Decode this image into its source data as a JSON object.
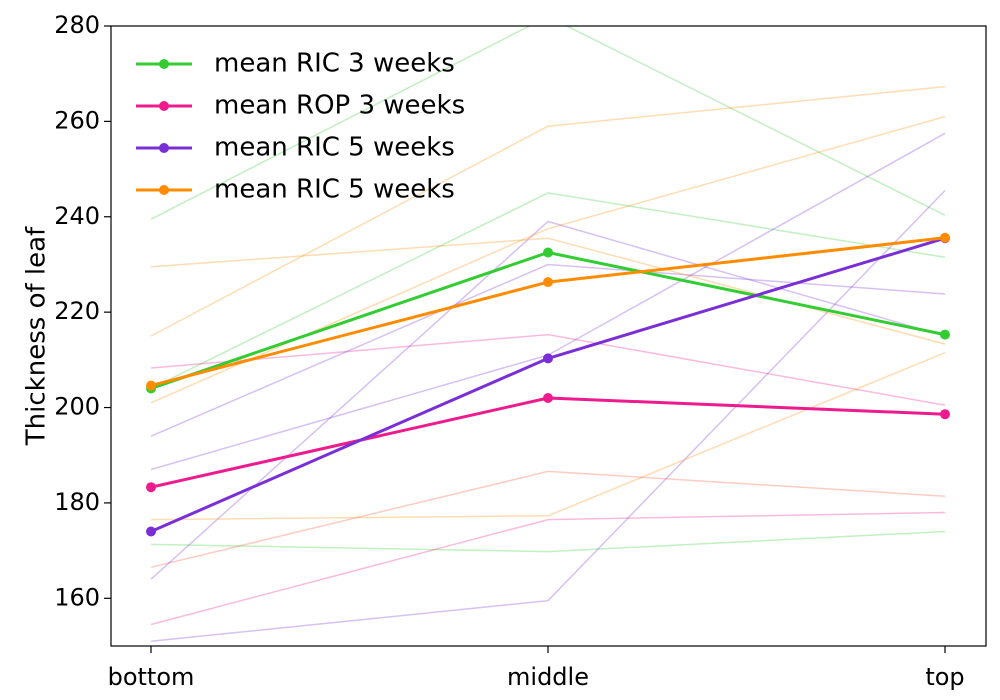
{
  "chart_data": {
    "type": "line",
    "title": "",
    "xlabel": "",
    "ylabel": "Thickness of leaf",
    "categories": [
      "bottom",
      "middle",
      "top"
    ],
    "ylim": [
      150,
      280
    ],
    "yticks": [
      160,
      180,
      200,
      220,
      240,
      260,
      280
    ],
    "grid": false,
    "legend_position": "top-left",
    "series": [
      {
        "name": "mean RIC 3 weeks",
        "color": "#33cc33",
        "values": [
          204,
          232.5,
          215.3
        ]
      },
      {
        "name": "mean ROP 3 weeks",
        "color": "#ee1b8f",
        "values": [
          183.3,
          202,
          198.6
        ]
      },
      {
        "name": "mean RIC 5 weeks",
        "color": "#7a2fd6",
        "values": [
          174,
          210.3,
          235.5
        ]
      },
      {
        "name": "mean RIC 5 weeks",
        "color": "#ff8c00",
        "values": [
          204.6,
          226.3,
          235.6
        ]
      }
    ],
    "individual_lines": [
      {
        "color": "#33cc33",
        "values": [
          239.5,
          282,
          240.3
        ]
      },
      {
        "color": "#33cc33",
        "values": [
          204,
          245,
          231.5
        ]
      },
      {
        "color": "#33cc33",
        "values": [
          171.3,
          169.8,
          174
        ]
      },
      {
        "color": "#ee1b8f",
        "values": [
          208.3,
          215.3,
          200.5
        ]
      },
      {
        "color": "#ee1b8f",
        "values": [
          154.5,
          176.5,
          178
        ]
      },
      {
        "color": "#ff5533",
        "values": [
          166.5,
          186.6,
          181.4
        ]
      },
      {
        "color": "#7a2fd6",
        "values": [
          164,
          239,
          215
        ]
      },
      {
        "color": "#7a2fd6",
        "values": [
          187,
          211,
          257.5
        ]
      },
      {
        "color": "#7a2fd6",
        "values": [
          151,
          159.5,
          245.5
        ]
      },
      {
        "color": "#7a2fd6",
        "values": [
          194,
          230,
          223.8
        ]
      },
      {
        "color": "#ff8c00",
        "values": [
          229.5,
          235.5,
          213.3
        ]
      },
      {
        "color": "#ff8c00",
        "values": [
          215,
          259,
          267.3
        ]
      },
      {
        "color": "#ff8c00",
        "values": [
          201,
          237.5,
          261
        ]
      },
      {
        "color": "#ff8c00",
        "values": [
          176.5,
          177.3,
          211.5
        ]
      }
    ]
  }
}
